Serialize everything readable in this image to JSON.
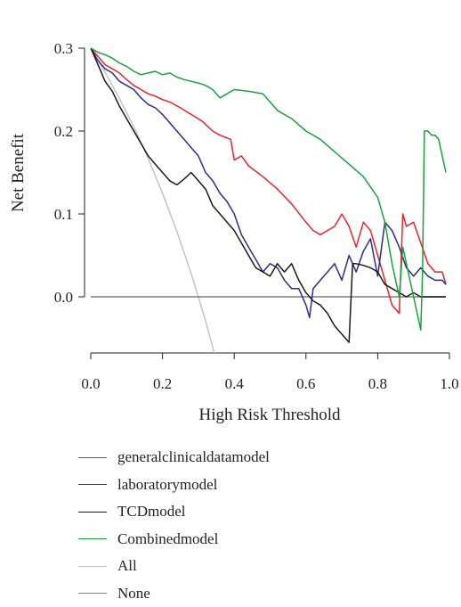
{
  "chart_data": {
    "type": "line",
    "title": "",
    "xlabel": "High Risk Threshold",
    "ylabel": "Net Benefit",
    "xlim": [
      0,
      1
    ],
    "ylim": [
      -0.065,
      0.31
    ],
    "xticks": [
      0.0,
      0.2,
      0.4,
      0.6,
      0.8,
      1.0
    ],
    "xtick_labels": [
      "0.0",
      "0.2",
      "0.4",
      "0.6",
      "0.8",
      "1.0"
    ],
    "yticks": [
      0.0,
      0.1,
      0.2,
      0.3
    ],
    "ytick_labels": [
      "0.0",
      "0.1",
      "0.2",
      "0.3"
    ],
    "grid": false,
    "legend_position": "bottom",
    "series": [
      {
        "name": "generalclinicaldatamodel",
        "color": "#e8242b",
        "x": [
          0.0,
          0.02,
          0.04,
          0.06,
          0.08,
          0.1,
          0.12,
          0.14,
          0.16,
          0.18,
          0.2,
          0.22,
          0.25,
          0.28,
          0.31,
          0.34,
          0.36,
          0.39,
          0.4,
          0.42,
          0.44,
          0.48,
          0.52,
          0.56,
          0.6,
          0.62,
          0.64,
          0.66,
          0.68,
          0.7,
          0.72,
          0.74,
          0.76,
          0.78,
          0.8,
          0.82,
          0.84,
          0.86,
          0.87,
          0.88,
          0.9,
          0.92,
          0.94,
          0.96,
          0.98,
          0.99
        ],
        "y": [
          0.3,
          0.29,
          0.28,
          0.275,
          0.27,
          0.262,
          0.255,
          0.25,
          0.245,
          0.242,
          0.238,
          0.235,
          0.228,
          0.22,
          0.212,
          0.2,
          0.195,
          0.19,
          0.165,
          0.17,
          0.158,
          0.145,
          0.13,
          0.112,
          0.09,
          0.08,
          0.075,
          0.08,
          0.085,
          0.1,
          0.085,
          0.06,
          0.09,
          0.08,
          0.05,
          0.02,
          -0.01,
          -0.02,
          0.1,
          0.085,
          0.09,
          0.065,
          0.04,
          0.03,
          0.03,
          0.015
        ]
      },
      {
        "name": "laboratorymodel",
        "color": "#2e2c8c",
        "x": [
          0.0,
          0.02,
          0.04,
          0.06,
          0.08,
          0.1,
          0.12,
          0.14,
          0.16,
          0.18,
          0.2,
          0.22,
          0.24,
          0.26,
          0.28,
          0.3,
          0.32,
          0.34,
          0.36,
          0.38,
          0.4,
          0.42,
          0.44,
          0.46,
          0.48,
          0.5,
          0.52,
          0.54,
          0.56,
          0.58,
          0.6,
          0.61,
          0.62,
          0.64,
          0.66,
          0.68,
          0.7,
          0.72,
          0.74,
          0.76,
          0.78,
          0.8,
          0.82,
          0.84,
          0.86,
          0.88,
          0.9,
          0.92,
          0.94,
          0.96,
          0.98,
          0.99
        ],
        "y": [
          0.3,
          0.285,
          0.275,
          0.27,
          0.26,
          0.255,
          0.25,
          0.24,
          0.232,
          0.228,
          0.22,
          0.21,
          0.2,
          0.19,
          0.18,
          0.17,
          0.15,
          0.14,
          0.125,
          0.115,
          0.1,
          0.075,
          0.06,
          0.045,
          0.03,
          0.04,
          0.035,
          0.02,
          0.01,
          0.01,
          -0.01,
          -0.025,
          0.01,
          0.02,
          0.03,
          0.04,
          0.02,
          0.05,
          0.03,
          0.055,
          0.07,
          0.025,
          0.09,
          0.08,
          0.06,
          0.035,
          0.025,
          0.035,
          0.025,
          0.02,
          0.02,
          0.015
        ]
      },
      {
        "name": "TCDmodel",
        "color": "#1a1a1a",
        "x": [
          0.0,
          0.02,
          0.04,
          0.06,
          0.08,
          0.1,
          0.12,
          0.14,
          0.16,
          0.18,
          0.2,
          0.22,
          0.24,
          0.26,
          0.28,
          0.3,
          0.32,
          0.34,
          0.36,
          0.38,
          0.4,
          0.42,
          0.44,
          0.46,
          0.48,
          0.5,
          0.52,
          0.54,
          0.56,
          0.58,
          0.6,
          0.62,
          0.64,
          0.66,
          0.68,
          0.7,
          0.72,
          0.73,
          0.74,
          0.76,
          0.78,
          0.8,
          0.82,
          0.84,
          0.86,
          0.88,
          0.9,
          0.92,
          0.94,
          0.96,
          0.98,
          0.99
        ],
        "y": [
          0.3,
          0.28,
          0.26,
          0.248,
          0.23,
          0.215,
          0.2,
          0.185,
          0.17,
          0.16,
          0.15,
          0.14,
          0.135,
          0.142,
          0.15,
          0.14,
          0.13,
          0.11,
          0.1,
          0.09,
          0.08,
          0.065,
          0.05,
          0.035,
          0.03,
          0.025,
          0.04,
          0.03,
          0.04,
          0.02,
          0.005,
          -0.005,
          -0.01,
          -0.02,
          -0.035,
          -0.045,
          -0.055,
          0.04,
          0.04,
          0.038,
          0.035,
          0.03,
          0.015,
          0.01,
          0.005,
          0.0,
          0.005,
          0.0,
          0.0,
          0.0,
          0.0,
          0.0
        ]
      },
      {
        "name": "Combinedmodel",
        "color": "#17a33a",
        "x": [
          0.0,
          0.02,
          0.04,
          0.06,
          0.08,
          0.1,
          0.12,
          0.14,
          0.16,
          0.18,
          0.2,
          0.22,
          0.24,
          0.26,
          0.28,
          0.3,
          0.32,
          0.34,
          0.36,
          0.38,
          0.4,
          0.44,
          0.48,
          0.5,
          0.52,
          0.56,
          0.6,
          0.64,
          0.68,
          0.72,
          0.76,
          0.8,
          0.82,
          0.84,
          0.86,
          0.87,
          0.88,
          0.9,
          0.92,
          0.925,
          0.93,
          0.94,
          0.95,
          0.96,
          0.97,
          0.98,
          0.99
        ],
        "y": [
          0.3,
          0.295,
          0.292,
          0.288,
          0.282,
          0.278,
          0.272,
          0.268,
          0.27,
          0.272,
          0.268,
          0.27,
          0.265,
          0.262,
          0.26,
          0.258,
          0.255,
          0.25,
          0.24,
          0.245,
          0.25,
          0.248,
          0.245,
          0.235,
          0.225,
          0.215,
          0.2,
          0.19,
          0.175,
          0.16,
          0.145,
          0.12,
          0.09,
          0.04,
          0.0,
          0.06,
          0.04,
          0.0,
          -0.04,
          0.03,
          0.2,
          0.2,
          0.195,
          0.195,
          0.19,
          0.17,
          0.15
        ]
      },
      {
        "name": "All",
        "color": "#c4c4c4",
        "x": [
          0.0,
          0.04,
          0.08,
          0.12,
          0.16,
          0.2,
          0.24,
          0.28,
          0.3,
          0.32,
          0.34,
          0.35
        ],
        "y": [
          0.3,
          0.271,
          0.239,
          0.205,
          0.167,
          0.125,
          0.079,
          0.028,
          0.0,
          -0.029,
          -0.061,
          -0.077
        ]
      },
      {
        "name": "None",
        "color": "#7f7f7f",
        "x": [
          0.0,
          0.99
        ],
        "y": [
          0.0,
          0.0
        ]
      }
    ]
  }
}
